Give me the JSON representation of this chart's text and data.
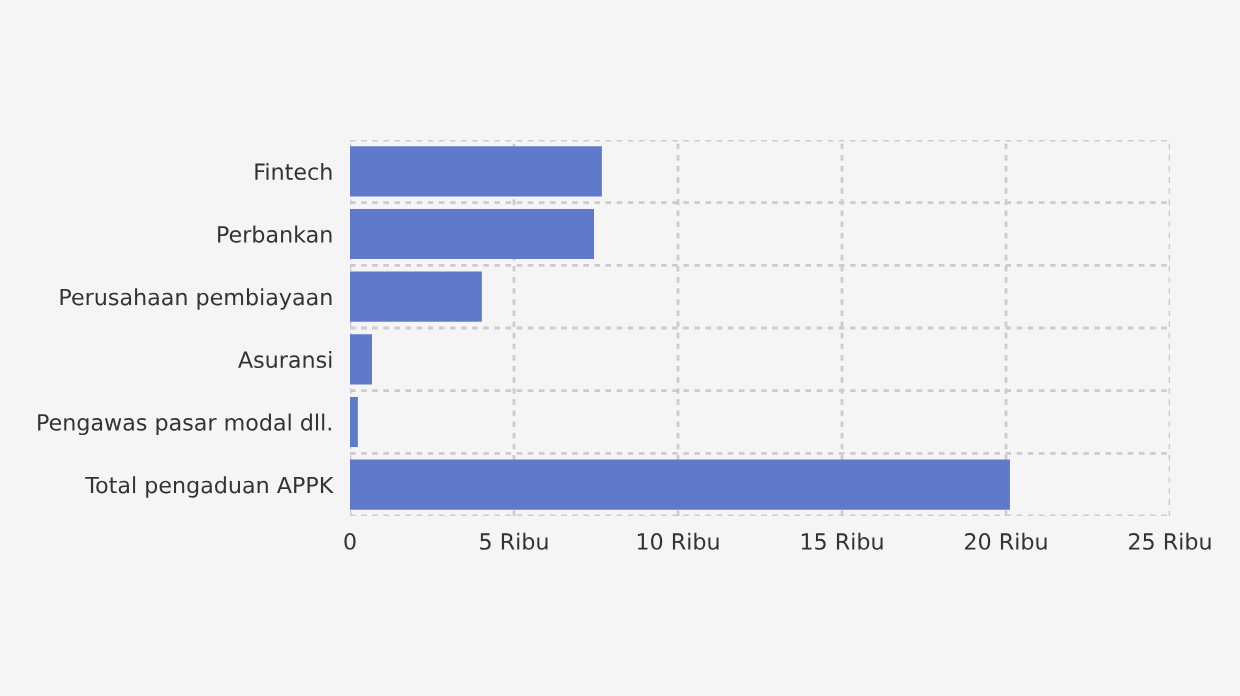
{
  "chart_data": {
    "type": "bar",
    "orientation": "horizontal",
    "categories": [
      "Fintech",
      "Perbankan",
      "Perusahaan pembiayaan",
      "Asuransi",
      "Pengawas pasar modal dll.",
      "Total pengaduan APPK"
    ],
    "values": [
      7.68,
      7.44,
      4.02,
      0.67,
      0.24,
      20.12
    ],
    "color": "#5f7acb",
    "xlim": [
      0,
      25
    ],
    "xticks": [
      0,
      {
        "value": 5,
        "label": "5 Ribu"
      },
      {
        "value": 10,
        "label": "10 Ribu"
      },
      {
        "value": 15,
        "label": "15 Ribu"
      },
      {
        "value": 20,
        "label": "20 Ribu"
      },
      {
        "value": 25,
        "label": "25 Ribu"
      }
    ],
    "grid": true
  }
}
